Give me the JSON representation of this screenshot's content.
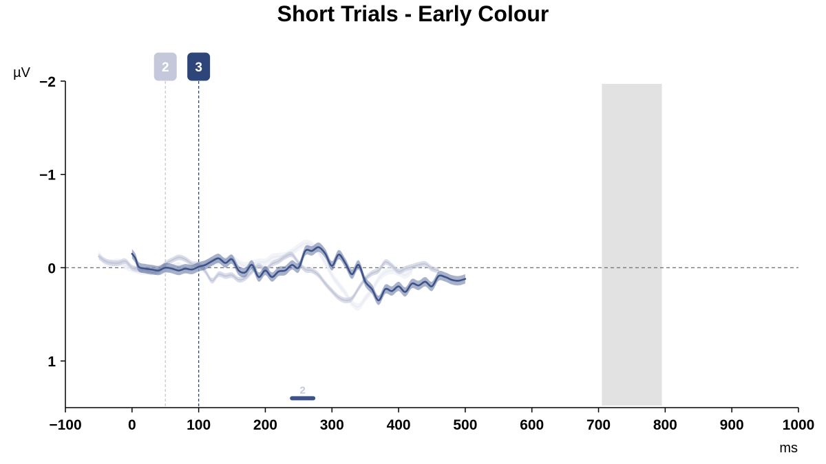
{
  "chart_data": {
    "type": "line",
    "title": "Short Trials - Early Colour",
    "xlabel": "ms",
    "ylabel": "µV",
    "xlim": [
      -100,
      1000
    ],
    "ylim": [
      -2,
      1.5
    ],
    "y_inverted": true,
    "xticks": [
      -100,
      0,
      100,
      200,
      300,
      400,
      500,
      600,
      700,
      800,
      900,
      1000
    ],
    "xtick_labels": [
      "−100",
      "0",
      "100",
      "200",
      "300",
      "400",
      "500",
      "600",
      "700",
      "800",
      "900",
      "1000"
    ],
    "yticks": [
      -2,
      -1,
      0,
      1
    ],
    "ytick_labels": [
      "−2",
      "−1",
      "0",
      "1"
    ],
    "zero_line": {
      "y": 0,
      "style": "dashed",
      "color": "#777777"
    },
    "shaded_region": {
      "x": [
        705,
        795
      ],
      "color": "#e2e2e2"
    },
    "markers": [
      {
        "label": "2",
        "x": 50,
        "color": "#c3c8da",
        "line_color": "#c8c8c8"
      },
      {
        "label": "3",
        "x": 100,
        "color": "#2e4579",
        "line_color": "#2e4579"
      }
    ],
    "significance": [
      {
        "label": "2",
        "x": [
          240,
          272
        ],
        "y": 1.4,
        "color": "#3c5289",
        "label_color": "#c3c8da"
      }
    ],
    "series": [
      {
        "color": "#eaedf4",
        "band": 0.04,
        "points": [
          [
            -50,
            -0.14
          ],
          [
            -40,
            -0.06
          ],
          [
            -30,
            -0.05
          ],
          [
            -20,
            -0.06
          ],
          [
            -10,
            -0.02
          ],
          [
            0,
            0.01
          ],
          [
            10,
            0.03
          ],
          [
            20,
            0.04
          ],
          [
            30,
            0.02
          ],
          [
            40,
            0.04
          ],
          [
            50,
            0.03
          ],
          [
            60,
            0.0
          ],
          [
            70,
            -0.02
          ],
          [
            80,
            0.02
          ],
          [
            90,
            -0.01
          ],
          [
            100,
            0.0
          ],
          [
            110,
            -0.04
          ],
          [
            120,
            -0.06
          ],
          [
            130,
            -0.07
          ],
          [
            140,
            -0.08
          ],
          [
            150,
            -0.1
          ],
          [
            160,
            -0.05
          ],
          [
            170,
            -0.02
          ],
          [
            180,
            -0.04
          ],
          [
            190,
            -0.06
          ],
          [
            200,
            -0.06
          ],
          [
            210,
            -0.11
          ],
          [
            220,
            -0.12
          ],
          [
            230,
            -0.13
          ],
          [
            240,
            -0.17
          ],
          [
            250,
            -0.22
          ],
          [
            260,
            -0.26
          ],
          [
            270,
            -0.24
          ],
          [
            280,
            -0.17
          ],
          [
            290,
            -0.05
          ],
          [
            300,
            0.08
          ],
          [
            310,
            0.18
          ],
          [
            320,
            0.27
          ],
          [
            330,
            0.38
          ],
          [
            340,
            0.42
          ],
          [
            350,
            0.33
          ],
          [
            360,
            0.24
          ],
          [
            370,
            0.12
          ],
          [
            380,
            0.05
          ],
          [
            390,
            0.03
          ],
          [
            400,
            0.05
          ],
          [
            410,
            0.08
          ],
          [
            420,
            0.03
          ]
        ]
      },
      {
        "color": "#c3c8da",
        "band": 0.03,
        "points": [
          [
            -50,
            -0.12
          ],
          [
            -40,
            -0.07
          ],
          [
            -30,
            -0.05
          ],
          [
            -20,
            -0.05
          ],
          [
            -10,
            -0.07
          ],
          [
            0,
            0.0
          ],
          [
            10,
            0.02
          ],
          [
            20,
            0.03
          ],
          [
            30,
            0.05
          ],
          [
            40,
            0.03
          ],
          [
            50,
            -0.04
          ],
          [
            60,
            -0.08
          ],
          [
            70,
            -0.11
          ],
          [
            80,
            -0.09
          ],
          [
            90,
            -0.04
          ],
          [
            100,
            -0.03
          ],
          [
            110,
            0.04
          ],
          [
            120,
            0.14
          ],
          [
            130,
            0.07
          ],
          [
            140,
            0.09
          ],
          [
            150,
            0.08
          ],
          [
            160,
            0.13
          ],
          [
            170,
            0.11
          ],
          [
            180,
            0.04
          ],
          [
            190,
            -0.02
          ],
          [
            200,
            0.02
          ],
          [
            210,
            -0.04
          ],
          [
            220,
            -0.07
          ],
          [
            230,
            -0.12
          ],
          [
            240,
            -0.14
          ],
          [
            250,
            -0.05
          ],
          [
            260,
            0.02
          ],
          [
            270,
            0.03
          ],
          [
            280,
            0.08
          ],
          [
            290,
            0.17
          ],
          [
            300,
            0.25
          ],
          [
            310,
            0.32
          ],
          [
            320,
            0.35
          ],
          [
            330,
            0.33
          ],
          [
            340,
            0.22
          ],
          [
            350,
            0.12
          ],
          [
            360,
            0.06
          ],
          [
            370,
            0.03
          ],
          [
            380,
            -0.06
          ],
          [
            390,
            -0.02
          ],
          [
            400,
            0.04
          ],
          [
            410,
            0.01
          ],
          [
            420,
            -0.01
          ],
          [
            430,
            -0.03
          ],
          [
            440,
            -0.04
          ],
          [
            450,
            0.01
          ],
          [
            460,
            0.03
          ]
        ]
      },
      {
        "color": "#3c5289",
        "band": 0.05,
        "points": [
          [
            0,
            -0.15
          ],
          [
            5,
            -0.1
          ],
          [
            10,
            -0.01
          ],
          [
            20,
            0.01
          ],
          [
            30,
            0.02
          ],
          [
            40,
            0.03
          ],
          [
            50,
            0.0
          ],
          [
            60,
            0.01
          ],
          [
            70,
            0.03
          ],
          [
            80,
            0.01
          ],
          [
            90,
            0.02
          ],
          [
            100,
            -0.01
          ],
          [
            110,
            -0.03
          ],
          [
            120,
            -0.07
          ],
          [
            130,
            -0.1
          ],
          [
            140,
            -0.05
          ],
          [
            150,
            -0.09
          ],
          [
            160,
            0.03
          ],
          [
            170,
            0.05
          ],
          [
            180,
            -0.03
          ],
          [
            190,
            0.1
          ],
          [
            200,
            0.03
          ],
          [
            210,
            0.1
          ],
          [
            220,
            0.04
          ],
          [
            230,
            0.03
          ],
          [
            240,
            -0.03
          ],
          [
            250,
            0.0
          ],
          [
            260,
            -0.18
          ],
          [
            270,
            -0.18
          ],
          [
            280,
            -0.22
          ],
          [
            290,
            -0.15
          ],
          [
            300,
            -0.02
          ],
          [
            310,
            -0.14
          ],
          [
            320,
            -0.05
          ],
          [
            330,
            0.07
          ],
          [
            340,
            -0.03
          ],
          [
            350,
            0.15
          ],
          [
            360,
            0.23
          ],
          [
            370,
            0.35
          ],
          [
            380,
            0.23
          ],
          [
            390,
            0.25
          ],
          [
            400,
            0.2
          ],
          [
            410,
            0.26
          ],
          [
            420,
            0.17
          ],
          [
            430,
            0.19
          ],
          [
            440,
            0.15
          ],
          [
            450,
            0.2
          ],
          [
            460,
            0.09
          ],
          [
            470,
            0.1
          ],
          [
            480,
            0.13
          ],
          [
            490,
            0.14
          ],
          [
            500,
            0.12
          ]
        ]
      }
    ]
  }
}
